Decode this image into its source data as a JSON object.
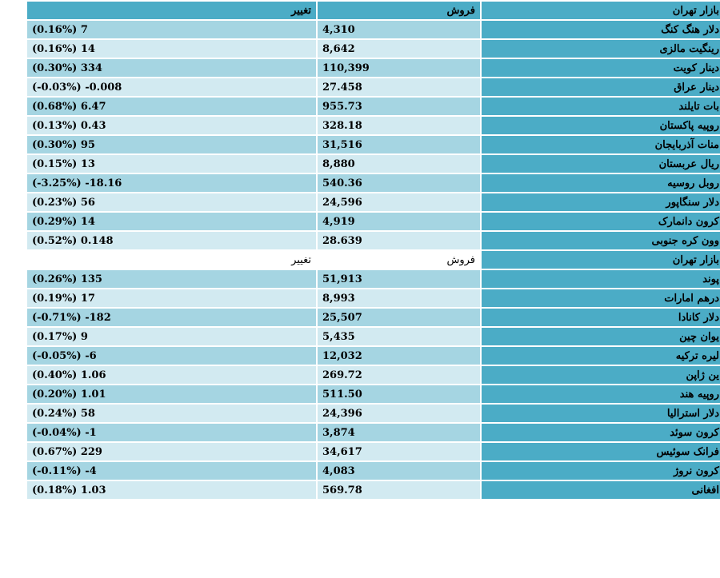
{
  "table": {
    "header": {
      "name": "بازار تهران",
      "sell": "فروش",
      "change": "تغییر"
    },
    "rows_1": [
      {
        "name": "دلار هنگ کنگ",
        "sell": "4,310",
        "change": "(0.16%) 7"
      },
      {
        "name": "رینگیت مالزی",
        "sell": "8,642",
        "change": "(0.16%) 14"
      },
      {
        "name": "دینار کویت",
        "sell": "110,399",
        "change": "(0.30%) 334"
      },
      {
        "name": "دینار عراق",
        "sell": "27.458",
        "change": "(-0.03%) -0.008"
      },
      {
        "name": "بات تایلند",
        "sell": "955.73",
        "change": "(0.68%) 6.47"
      },
      {
        "name": "روپیه پاکستان",
        "sell": "328.18",
        "change": "(0.13%) 0.43"
      },
      {
        "name": "منات آذربایجان",
        "sell": "31,516",
        "change": "(0.30%) 95"
      },
      {
        "name": "ریال عربستان",
        "sell": "8,880",
        "change": "(0.15%) 13"
      },
      {
        "name": "روبل روسیه",
        "sell": "540.36",
        "change": "(-3.25%) -18.16"
      },
      {
        "name": "دلار سنگاپور",
        "sell": "24,596",
        "change": "(0.23%) 56"
      },
      {
        "name": "کرون دانمارک",
        "sell": "4,919",
        "change": "(0.29%) 14"
      },
      {
        "name": "وون کره جنوبی",
        "sell": "28.639",
        "change": "(0.52%) 0.148"
      }
    ],
    "header_2": {
      "name": "بازار تهران",
      "sell": "فروش",
      "change": "تغییر"
    },
    "rows_2": [
      {
        "name": "پوند",
        "sell": "51,913",
        "change": "(0.26%) 135"
      },
      {
        "name": "درهم امارات",
        "sell": "8,993",
        "change": "(0.19%) 17"
      },
      {
        "name": "دلار کانادا",
        "sell": "25,507",
        "change": "(-0.71%) -182"
      },
      {
        "name": "یوان چین",
        "sell": "5,435",
        "change": "(0.17%) 9"
      },
      {
        "name": "لیره ترکیه",
        "sell": "12,032",
        "change": "(-0.05%) -6"
      },
      {
        "name": "ین ژاپن",
        "sell": "269.72",
        "change": "(0.40%) 1.06"
      },
      {
        "name": "روپیه هند",
        "sell": "511.50",
        "change": "(0.20%) 1.01"
      },
      {
        "name": "دلار استرالیا",
        "sell": "24,396",
        "change": "(0.24%) 58"
      },
      {
        "name": "کرون سوئد",
        "sell": "3,874",
        "change": "(-0.04%) -1"
      },
      {
        "name": "فرانک سوئیس",
        "sell": "34,617",
        "change": "(0.67%) 229"
      },
      {
        "name": "کرون نروژ",
        "sell": "4,083",
        "change": "(-0.11%) -4"
      },
      {
        "name": "افغانی",
        "sell": "569.78",
        "change": "(0.18%) 1.03"
      }
    ]
  },
  "colors": {
    "header": "#4bacc6",
    "row_dark": "#a5d5e2",
    "row_light": "#d2eaf1"
  }
}
